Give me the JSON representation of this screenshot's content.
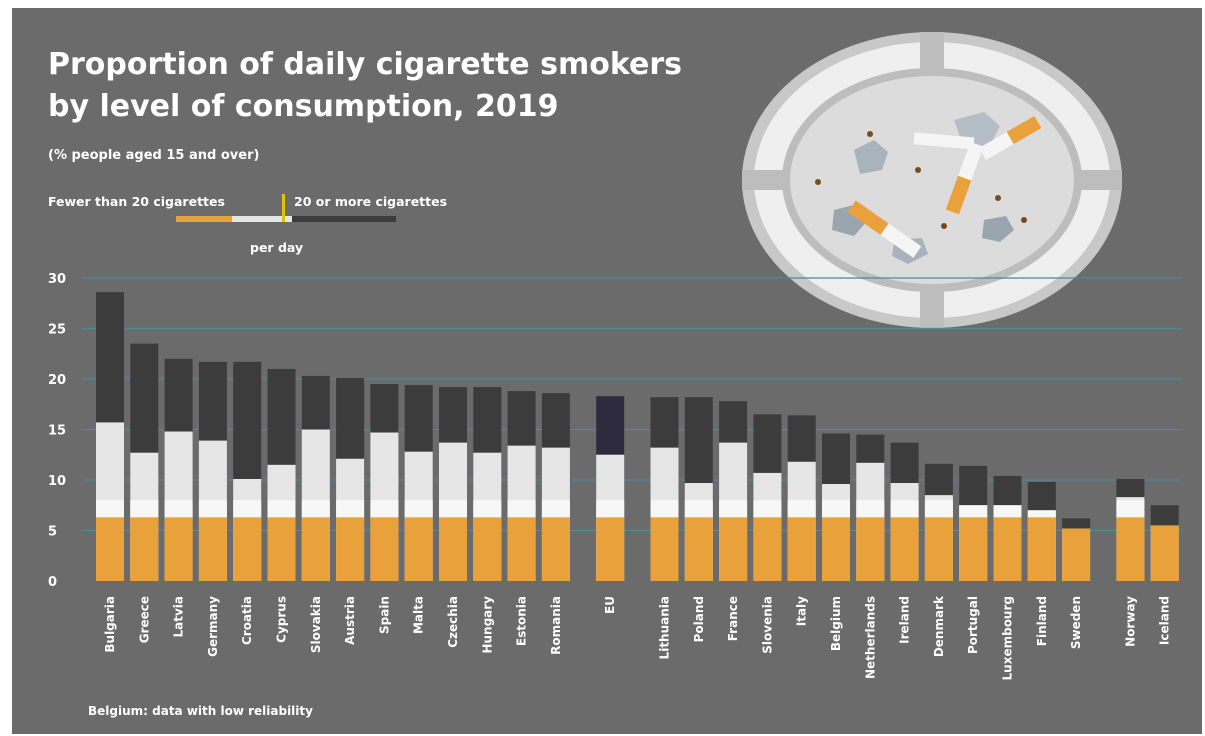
{
  "title_lines": [
    "Proportion of daily cigarette smokers",
    "by level of consumption, 2019"
  ],
  "subtitle": "(% people aged 15 and over)",
  "legend": {
    "fewer_label": "Fewer than 20 cigarettes",
    "more_label": "20 or more cigarettes",
    "per_day_label": "per day"
  },
  "footnote": "Belgium: data with low reliability",
  "colors": {
    "background": "#6b6b6b",
    "filter_orange": "#e9a23b",
    "paper_white": "#e6e6e6",
    "twenty_plus_dark": "#3c3c3c",
    "eu_dark": "#2f2b3e",
    "gridline": "#4b8a99"
  },
  "chart_data": {
    "type": "bar",
    "stacked": true,
    "ylim": [
      0,
      30
    ],
    "yticks": [
      0,
      5,
      10,
      15,
      20,
      25,
      30
    ],
    "grid": true,
    "categories": [
      "Bulgaria",
      "Greece",
      "Latvia",
      "Germany",
      "Croatia",
      "Cyprus",
      "Slovakia",
      "Austria",
      "Spain",
      "Malta",
      "Czechia",
      "Hungary",
      "Estonia",
      "Romania",
      "EU",
      "Lithuania",
      "Poland",
      "France",
      "Slovenia",
      "Italy",
      "Belgium",
      "Netherlands",
      "Ireland",
      "Denmark",
      "Portugal",
      "Luxembourg",
      "Finland",
      "Sweden",
      "Norway",
      "Iceland"
    ],
    "groups": [
      14,
      1,
      13,
      2
    ],
    "series": [
      {
        "name": "Fewer than 20 cigarettes",
        "values": [
          15.7,
          12.7,
          14.8,
          13.9,
          10.1,
          11.5,
          15.0,
          12.1,
          14.7,
          12.8,
          13.7,
          12.7,
          13.4,
          13.2,
          12.5,
          13.2,
          9.7,
          13.7,
          10.7,
          11.8,
          9.6,
          11.7,
          9.7,
          8.5,
          7.5,
          7.5,
          7.0,
          5.2,
          8.3,
          5.5
        ]
      },
      {
        "name": "20 or more cigarettes",
        "values": [
          12.9,
          10.8,
          7.2,
          7.8,
          11.6,
          9.5,
          5.3,
          8.0,
          4.8,
          6.6,
          5.5,
          6.5,
          5.4,
          5.4,
          5.8,
          5.0,
          8.5,
          4.1,
          5.8,
          4.6,
          5.0,
          2.8,
          4.0,
          3.1,
          3.9,
          2.9,
          2.8,
          1.0,
          1.8,
          2.0
        ]
      }
    ]
  }
}
